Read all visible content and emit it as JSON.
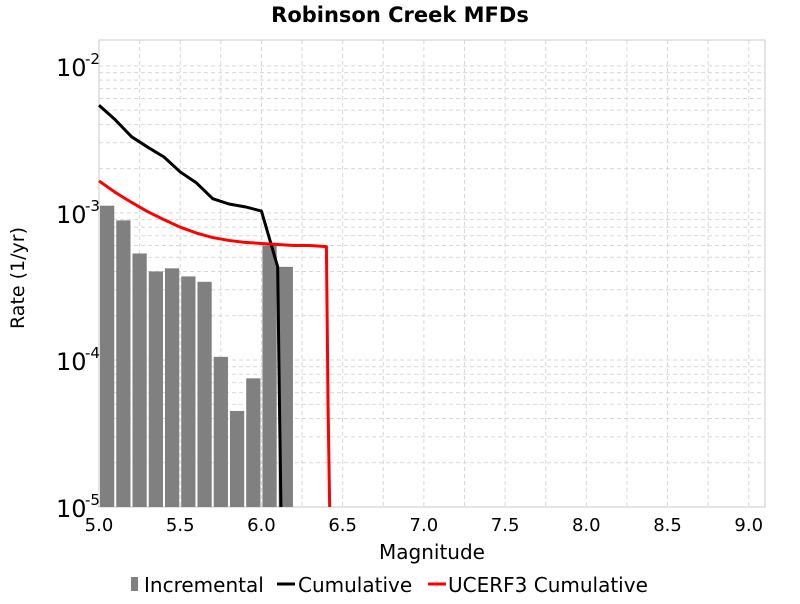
{
  "chart_data": {
    "type": "bar",
    "title": "Robinson Creek MFDs",
    "xlabel": "Magnitude",
    "ylabel": "Rate (1/yr)",
    "xscale": "linear",
    "yscale": "log",
    "xlim": [
      5.0,
      9.1
    ],
    "ylim": [
      1e-05,
      0.015
    ],
    "xticks": [
      "5.0",
      "5.5",
      "6.0",
      "6.5",
      "7.0",
      "7.5",
      "8.0",
      "8.5",
      "9.0"
    ],
    "yticks": [
      {
        "value": 0.01,
        "base": "10",
        "exp": "-2"
      },
      {
        "value": 0.001,
        "base": "10",
        "exp": "-3"
      },
      {
        "value": 0.0001,
        "base": "10",
        "exp": "-4"
      },
      {
        "value": 1e-05,
        "base": "10",
        "exp": "-5"
      }
    ],
    "grid": true,
    "legend_position": "bottom",
    "series": [
      {
        "name": "Incremental",
        "type": "bar",
        "color": "#808080",
        "bar_width": 0.1,
        "x": [
          5.05,
          5.15,
          5.25,
          5.35,
          5.45,
          5.55,
          5.65,
          5.75,
          5.85,
          5.95,
          6.05,
          6.15
        ],
        "values": [
          0.00112,
          0.00089,
          0.00053,
          0.0004,
          0.00042,
          0.00037,
          0.00034,
          0.000105,
          4.5e-05,
          7.5e-05,
          0.0006,
          0.00043
        ]
      },
      {
        "name": "Cumulative",
        "type": "line",
        "color": "#000000",
        "x": [
          5.0,
          5.1,
          5.2,
          5.3,
          5.4,
          5.5,
          5.6,
          5.7,
          5.8,
          5.9,
          6.0,
          6.1,
          6.11,
          6.12
        ],
        "values": [
          0.0054,
          0.0043,
          0.0033,
          0.0028,
          0.0024,
          0.0019,
          0.0016,
          0.00125,
          0.00115,
          0.0011,
          0.00103,
          0.00043,
          6e-05,
          1e-05
        ]
      },
      {
        "name": "UCERF3 Cumulative",
        "type": "line",
        "color": "#ff0000",
        "x": [
          5.0,
          5.1,
          5.2,
          5.3,
          5.4,
          5.5,
          5.6,
          5.7,
          5.8,
          5.9,
          6.0,
          6.1,
          6.2,
          6.3,
          6.4,
          6.41,
          6.42
        ],
        "values": [
          0.00165,
          0.00138,
          0.00118,
          0.00102,
          0.0009,
          0.0008,
          0.00073,
          0.00068,
          0.00065,
          0.00063,
          0.00062,
          0.00061,
          0.0006,
          0.0006,
          0.00059,
          5e-05,
          1e-05
        ]
      }
    ]
  }
}
